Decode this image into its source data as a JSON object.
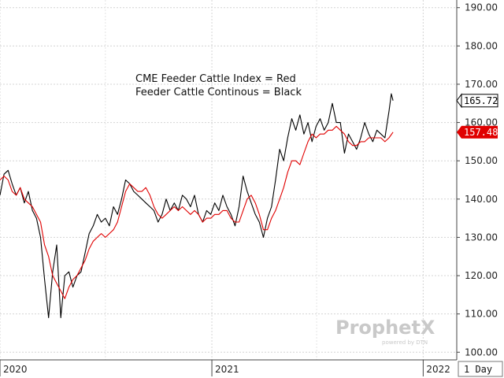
{
  "chart_data": {
    "type": "line",
    "annotation": [
      "CME Feeder Cattle Index = Red",
      "Feeder Cattle Continous = Black"
    ],
    "ylim": [
      98,
      192
    ],
    "yticks": [
      100,
      110,
      120,
      130,
      140,
      150,
      160,
      170,
      180,
      190
    ],
    "ytick_labels": [
      "100.00",
      "110.00",
      "120.00",
      "130.00",
      "140.00",
      "150.00",
      "160.00",
      "170.00",
      "180.00",
      "190.00"
    ],
    "xlim": [
      "2020-01-01",
      "2022-02-28"
    ],
    "x_labels": [
      {
        "date": "2020-01-01",
        "label": "2020"
      },
      {
        "date": "2021-01-01",
        "label": "2021"
      },
      {
        "date": "2022-01-01",
        "label": "2022"
      }
    ],
    "period": "1 Day",
    "grid": true,
    "series": [
      {
        "color": "#000000",
        "last_label": "165.72",
        "points": [
          [
            "2020-01-01",
            141
          ],
          [
            "2020-01-08",
            146.5
          ],
          [
            "2020-01-15",
            147.5
          ],
          [
            "2020-01-22",
            144
          ],
          [
            "2020-01-29",
            141
          ],
          [
            "2020-02-05",
            143
          ],
          [
            "2020-02-12",
            139
          ],
          [
            "2020-02-19",
            142
          ],
          [
            "2020-02-26",
            137
          ],
          [
            "2020-03-04",
            135
          ],
          [
            "2020-03-11",
            130
          ],
          [
            "2020-03-18",
            119
          ],
          [
            "2020-03-25",
            109
          ],
          [
            "2020-04-01",
            121
          ],
          [
            "2020-04-08",
            128
          ],
          [
            "2020-04-15",
            109
          ],
          [
            "2020-04-22",
            120
          ],
          [
            "2020-04-29",
            121
          ],
          [
            "2020-05-06",
            117
          ],
          [
            "2020-05-13",
            120
          ],
          [
            "2020-05-20",
            121
          ],
          [
            "2020-05-27",
            126
          ],
          [
            "2020-06-03",
            131
          ],
          [
            "2020-06-10",
            133
          ],
          [
            "2020-06-17",
            136
          ],
          [
            "2020-06-24",
            134
          ],
          [
            "2020-07-01",
            135
          ],
          [
            "2020-07-08",
            133
          ],
          [
            "2020-07-15",
            138
          ],
          [
            "2020-07-22",
            136
          ],
          [
            "2020-07-29",
            140
          ],
          [
            "2020-08-05",
            145
          ],
          [
            "2020-08-12",
            144
          ],
          [
            "2020-08-19",
            142
          ],
          [
            "2020-08-26",
            141
          ],
          [
            "2020-09-02",
            140
          ],
          [
            "2020-09-09",
            139
          ],
          [
            "2020-09-16",
            138
          ],
          [
            "2020-09-23",
            137
          ],
          [
            "2020-09-30",
            134
          ],
          [
            "2020-10-07",
            136
          ],
          [
            "2020-10-14",
            140
          ],
          [
            "2020-10-21",
            137
          ],
          [
            "2020-10-28",
            139
          ],
          [
            "2020-11-04",
            137
          ],
          [
            "2020-11-11",
            141
          ],
          [
            "2020-11-18",
            140
          ],
          [
            "2020-11-25",
            138
          ],
          [
            "2020-12-02",
            141
          ],
          [
            "2020-12-09",
            136
          ],
          [
            "2020-12-16",
            134
          ],
          [
            "2020-12-23",
            137
          ],
          [
            "2020-12-30",
            136
          ],
          [
            "2021-01-06",
            139
          ],
          [
            "2021-01-13",
            137
          ],
          [
            "2021-01-20",
            141
          ],
          [
            "2021-01-27",
            138
          ],
          [
            "2021-02-03",
            136
          ],
          [
            "2021-02-10",
            133
          ],
          [
            "2021-02-17",
            138
          ],
          [
            "2021-02-24",
            146
          ],
          [
            "2021-03-03",
            142
          ],
          [
            "2021-03-10",
            139
          ],
          [
            "2021-03-17",
            136
          ],
          [
            "2021-03-24",
            134
          ],
          [
            "2021-03-31",
            130
          ],
          [
            "2021-04-07",
            135
          ],
          [
            "2021-04-14",
            138
          ],
          [
            "2021-04-21",
            145
          ],
          [
            "2021-04-28",
            153
          ],
          [
            "2021-05-05",
            150
          ],
          [
            "2021-05-12",
            156
          ],
          [
            "2021-05-19",
            161
          ],
          [
            "2021-05-26",
            158
          ],
          [
            "2021-06-02",
            162
          ],
          [
            "2021-06-09",
            157
          ],
          [
            "2021-06-16",
            160
          ],
          [
            "2021-06-23",
            155
          ],
          [
            "2021-06-30",
            159
          ],
          [
            "2021-07-07",
            161
          ],
          [
            "2021-07-14",
            158
          ],
          [
            "2021-07-21",
            160
          ],
          [
            "2021-07-28",
            165
          ],
          [
            "2021-08-04",
            160
          ],
          [
            "2021-08-11",
            160
          ],
          [
            "2021-08-18",
            152
          ],
          [
            "2021-08-25",
            157
          ],
          [
            "2021-09-01",
            155
          ],
          [
            "2021-09-08",
            153
          ],
          [
            "2021-09-15",
            156
          ],
          [
            "2021-09-22",
            160
          ],
          [
            "2021-09-29",
            157
          ],
          [
            "2021-10-06",
            155
          ],
          [
            "2021-10-13",
            158
          ],
          [
            "2021-10-20",
            157
          ],
          [
            "2021-10-27",
            156
          ],
          [
            "2021-11-03",
            163
          ],
          [
            "2021-11-07",
            167.5
          ],
          [
            "2021-11-10",
            165.72
          ]
        ]
      },
      {
        "color": "#e00000",
        "last_label": "157.48",
        "points": [
          [
            "2020-01-01",
            145
          ],
          [
            "2020-01-08",
            146
          ],
          [
            "2020-01-15",
            145
          ],
          [
            "2020-01-22",
            142
          ],
          [
            "2020-01-29",
            141
          ],
          [
            "2020-02-05",
            143
          ],
          [
            "2020-02-12",
            140
          ],
          [
            "2020-02-19",
            139
          ],
          [
            "2020-02-26",
            138
          ],
          [
            "2020-03-04",
            136
          ],
          [
            "2020-03-11",
            134
          ],
          [
            "2020-03-18",
            128
          ],
          [
            "2020-03-25",
            125
          ],
          [
            "2020-04-01",
            120
          ],
          [
            "2020-04-08",
            118
          ],
          [
            "2020-04-15",
            116
          ],
          [
            "2020-04-22",
            114
          ],
          [
            "2020-04-29",
            117
          ],
          [
            "2020-05-06",
            119
          ],
          [
            "2020-05-13",
            120
          ],
          [
            "2020-05-20",
            122
          ],
          [
            "2020-05-27",
            124
          ],
          [
            "2020-06-03",
            127
          ],
          [
            "2020-06-10",
            129
          ],
          [
            "2020-06-17",
            130
          ],
          [
            "2020-06-24",
            131
          ],
          [
            "2020-07-01",
            130
          ],
          [
            "2020-07-08",
            131
          ],
          [
            "2020-07-15",
            132
          ],
          [
            "2020-07-22",
            134
          ],
          [
            "2020-07-29",
            138
          ],
          [
            "2020-08-05",
            142
          ],
          [
            "2020-08-12",
            144
          ],
          [
            "2020-08-19",
            143
          ],
          [
            "2020-08-26",
            142
          ],
          [
            "2020-09-02",
            142
          ],
          [
            "2020-09-09",
            143
          ],
          [
            "2020-09-16",
            141
          ],
          [
            "2020-09-23",
            138
          ],
          [
            "2020-09-30",
            136
          ],
          [
            "2020-10-07",
            135
          ],
          [
            "2020-10-14",
            136
          ],
          [
            "2020-10-21",
            137
          ],
          [
            "2020-10-28",
            138
          ],
          [
            "2020-11-04",
            137
          ],
          [
            "2020-11-11",
            138
          ],
          [
            "2020-11-18",
            137
          ],
          [
            "2020-11-25",
            136
          ],
          [
            "2020-12-02",
            137
          ],
          [
            "2020-12-09",
            136
          ],
          [
            "2020-12-16",
            134
          ],
          [
            "2020-12-23",
            135
          ],
          [
            "2020-12-30",
            135
          ],
          [
            "2021-01-06",
            136
          ],
          [
            "2021-01-13",
            136
          ],
          [
            "2021-01-20",
            137
          ],
          [
            "2021-01-27",
            137
          ],
          [
            "2021-02-03",
            135
          ],
          [
            "2021-02-10",
            134
          ],
          [
            "2021-02-17",
            134
          ],
          [
            "2021-02-24",
            137
          ],
          [
            "2021-03-03",
            140
          ],
          [
            "2021-03-10",
            141
          ],
          [
            "2021-03-17",
            139
          ],
          [
            "2021-03-24",
            136
          ],
          [
            "2021-03-31",
            132
          ],
          [
            "2021-04-07",
            132
          ],
          [
            "2021-04-14",
            135
          ],
          [
            "2021-04-21",
            137
          ],
          [
            "2021-04-28",
            140
          ],
          [
            "2021-05-05",
            143
          ],
          [
            "2021-05-12",
            147
          ],
          [
            "2021-05-19",
            150
          ],
          [
            "2021-05-26",
            150
          ],
          [
            "2021-06-02",
            149
          ],
          [
            "2021-06-09",
            152
          ],
          [
            "2021-06-16",
            155
          ],
          [
            "2021-06-23",
            157
          ],
          [
            "2021-06-30",
            156
          ],
          [
            "2021-07-07",
            157
          ],
          [
            "2021-07-14",
            157
          ],
          [
            "2021-07-21",
            158
          ],
          [
            "2021-07-28",
            158
          ],
          [
            "2021-08-04",
            159
          ],
          [
            "2021-08-11",
            158
          ],
          [
            "2021-08-18",
            157
          ],
          [
            "2021-08-25",
            155
          ],
          [
            "2021-09-01",
            154
          ],
          [
            "2021-09-08",
            154
          ],
          [
            "2021-09-15",
            155
          ],
          [
            "2021-09-22",
            155
          ],
          [
            "2021-09-29",
            156
          ],
          [
            "2021-10-06",
            156
          ],
          [
            "2021-10-13",
            156
          ],
          [
            "2021-10-20",
            156
          ],
          [
            "2021-10-27",
            155
          ],
          [
            "2021-11-03",
            156
          ],
          [
            "2021-11-10",
            157.48
          ]
        ]
      }
    ]
  },
  "watermark": {
    "brand": "ProphetX",
    "sub": "powered by DTN"
  }
}
